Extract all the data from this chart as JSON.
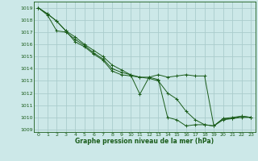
{
  "title": "Graphe pression niveau de la mer (hPa)",
  "bg_color": "#cce8e8",
  "grid_color": "#aacccc",
  "line_color": "#1a5c1a",
  "xlim": [
    -0.5,
    23.5
  ],
  "ylim": [
    1008.8,
    1019.5
  ],
  "yticks": [
    1009,
    1010,
    1011,
    1012,
    1013,
    1014,
    1015,
    1016,
    1017,
    1018,
    1019
  ],
  "xticks": [
    0,
    1,
    2,
    3,
    4,
    5,
    6,
    7,
    8,
    9,
    10,
    11,
    12,
    13,
    14,
    15,
    16,
    17,
    18,
    19,
    20,
    21,
    22,
    23
  ],
  "series": [
    [
      1019.0,
      1018.5,
      1017.9,
      1017.1,
      1016.6,
      1016.0,
      1015.5,
      1015.0,
      1014.3,
      1013.9,
      1013.5,
      1013.3,
      1013.3,
      1013.5,
      1013.3,
      1013.4,
      1013.5,
      1013.4,
      1013.4,
      1009.3,
      1009.9,
      1009.9,
      1010.1,
      1010.0
    ],
    [
      1019.0,
      1018.5,
      1017.9,
      1017.1,
      1016.2,
      1015.8,
      1015.2,
      1014.7,
      1013.8,
      1013.5,
      1013.4,
      1013.3,
      1013.2,
      1013.0,
      1012.0,
      1011.5,
      1010.5,
      1009.8,
      1009.4,
      1009.3,
      1009.8,
      1009.9,
      1010.0,
      1010.0
    ],
    [
      1019.0,
      1018.4,
      1017.1,
      1017.0,
      1016.4,
      1015.9,
      1015.3,
      1014.8,
      1014.0,
      1013.7,
      1013.5,
      1011.9,
      1013.3,
      1013.1,
      1010.0,
      1009.8,
      1009.3,
      1009.4,
      1009.4,
      1009.3,
      1009.9,
      1010.0,
      1010.1,
      1010.0
    ]
  ]
}
